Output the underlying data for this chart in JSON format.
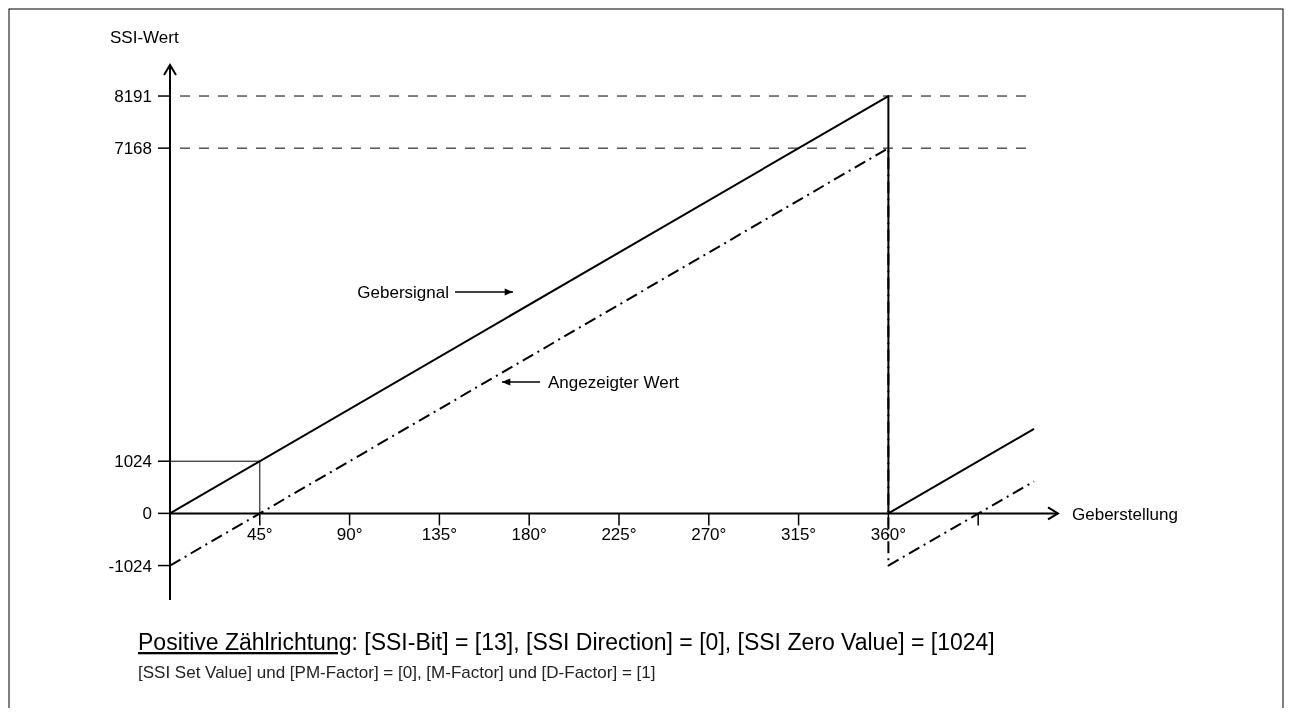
{
  "chart_data": {
    "type": "line",
    "ylabel": "SSI-Wert",
    "xlabel": "Geberstellung",
    "xlim": [
      0,
      445
    ],
    "ylim": [
      -1700,
      8800
    ],
    "xticks": [
      {
        "value": 45,
        "label": "45°"
      },
      {
        "value": 90,
        "label": "90°"
      },
      {
        "value": 135,
        "label": "135°"
      },
      {
        "value": 180,
        "label": "180°"
      },
      {
        "value": 225,
        "label": "225°"
      },
      {
        "value": 270,
        "label": "270°"
      },
      {
        "value": 315,
        "label": "315°"
      },
      {
        "value": 360,
        "label": "360°"
      },
      {
        "value": 405,
        "label": null
      }
    ],
    "yticks": [
      -1024,
      0,
      1024,
      7168,
      8191
    ],
    "series": [
      {
        "color": "#000000",
        "line_style": "solid",
        "x": [
          0,
          360,
          360,
          433
        ],
        "values": [
          0,
          8191,
          0,
          1660
        ]
      },
      {
        "color": "#000000",
        "line_style": "dashdot",
        "x": [
          0,
          360,
          360,
          433
        ],
        "values": [
          -1024,
          7168,
          -1024,
          630
        ]
      },
      {
        "color": "#000000",
        "line_style": "solid",
        "x": [
          0,
          45,
          45
        ],
        "values": [
          1024,
          1024,
          0
        ]
      }
    ],
    "ref_lines": [
      {
        "axis": "y",
        "value": 8191,
        "line_style": "dashed"
      },
      {
        "axis": "y",
        "value": 7168,
        "line_style": "dashed"
      }
    ],
    "annotations": [
      "Gebersignal",
      "Angezeigter Wert",
      "Positive Zählrichtung: [SSI-Bit] = [13],  [SSI Direction] = [0],  [SSI Zero Value] = [1024]",
      "[SSI Set Value] und [PM-Factor] = [0],  [M-Factor] und [D-Factor] = [1]"
    ]
  }
}
